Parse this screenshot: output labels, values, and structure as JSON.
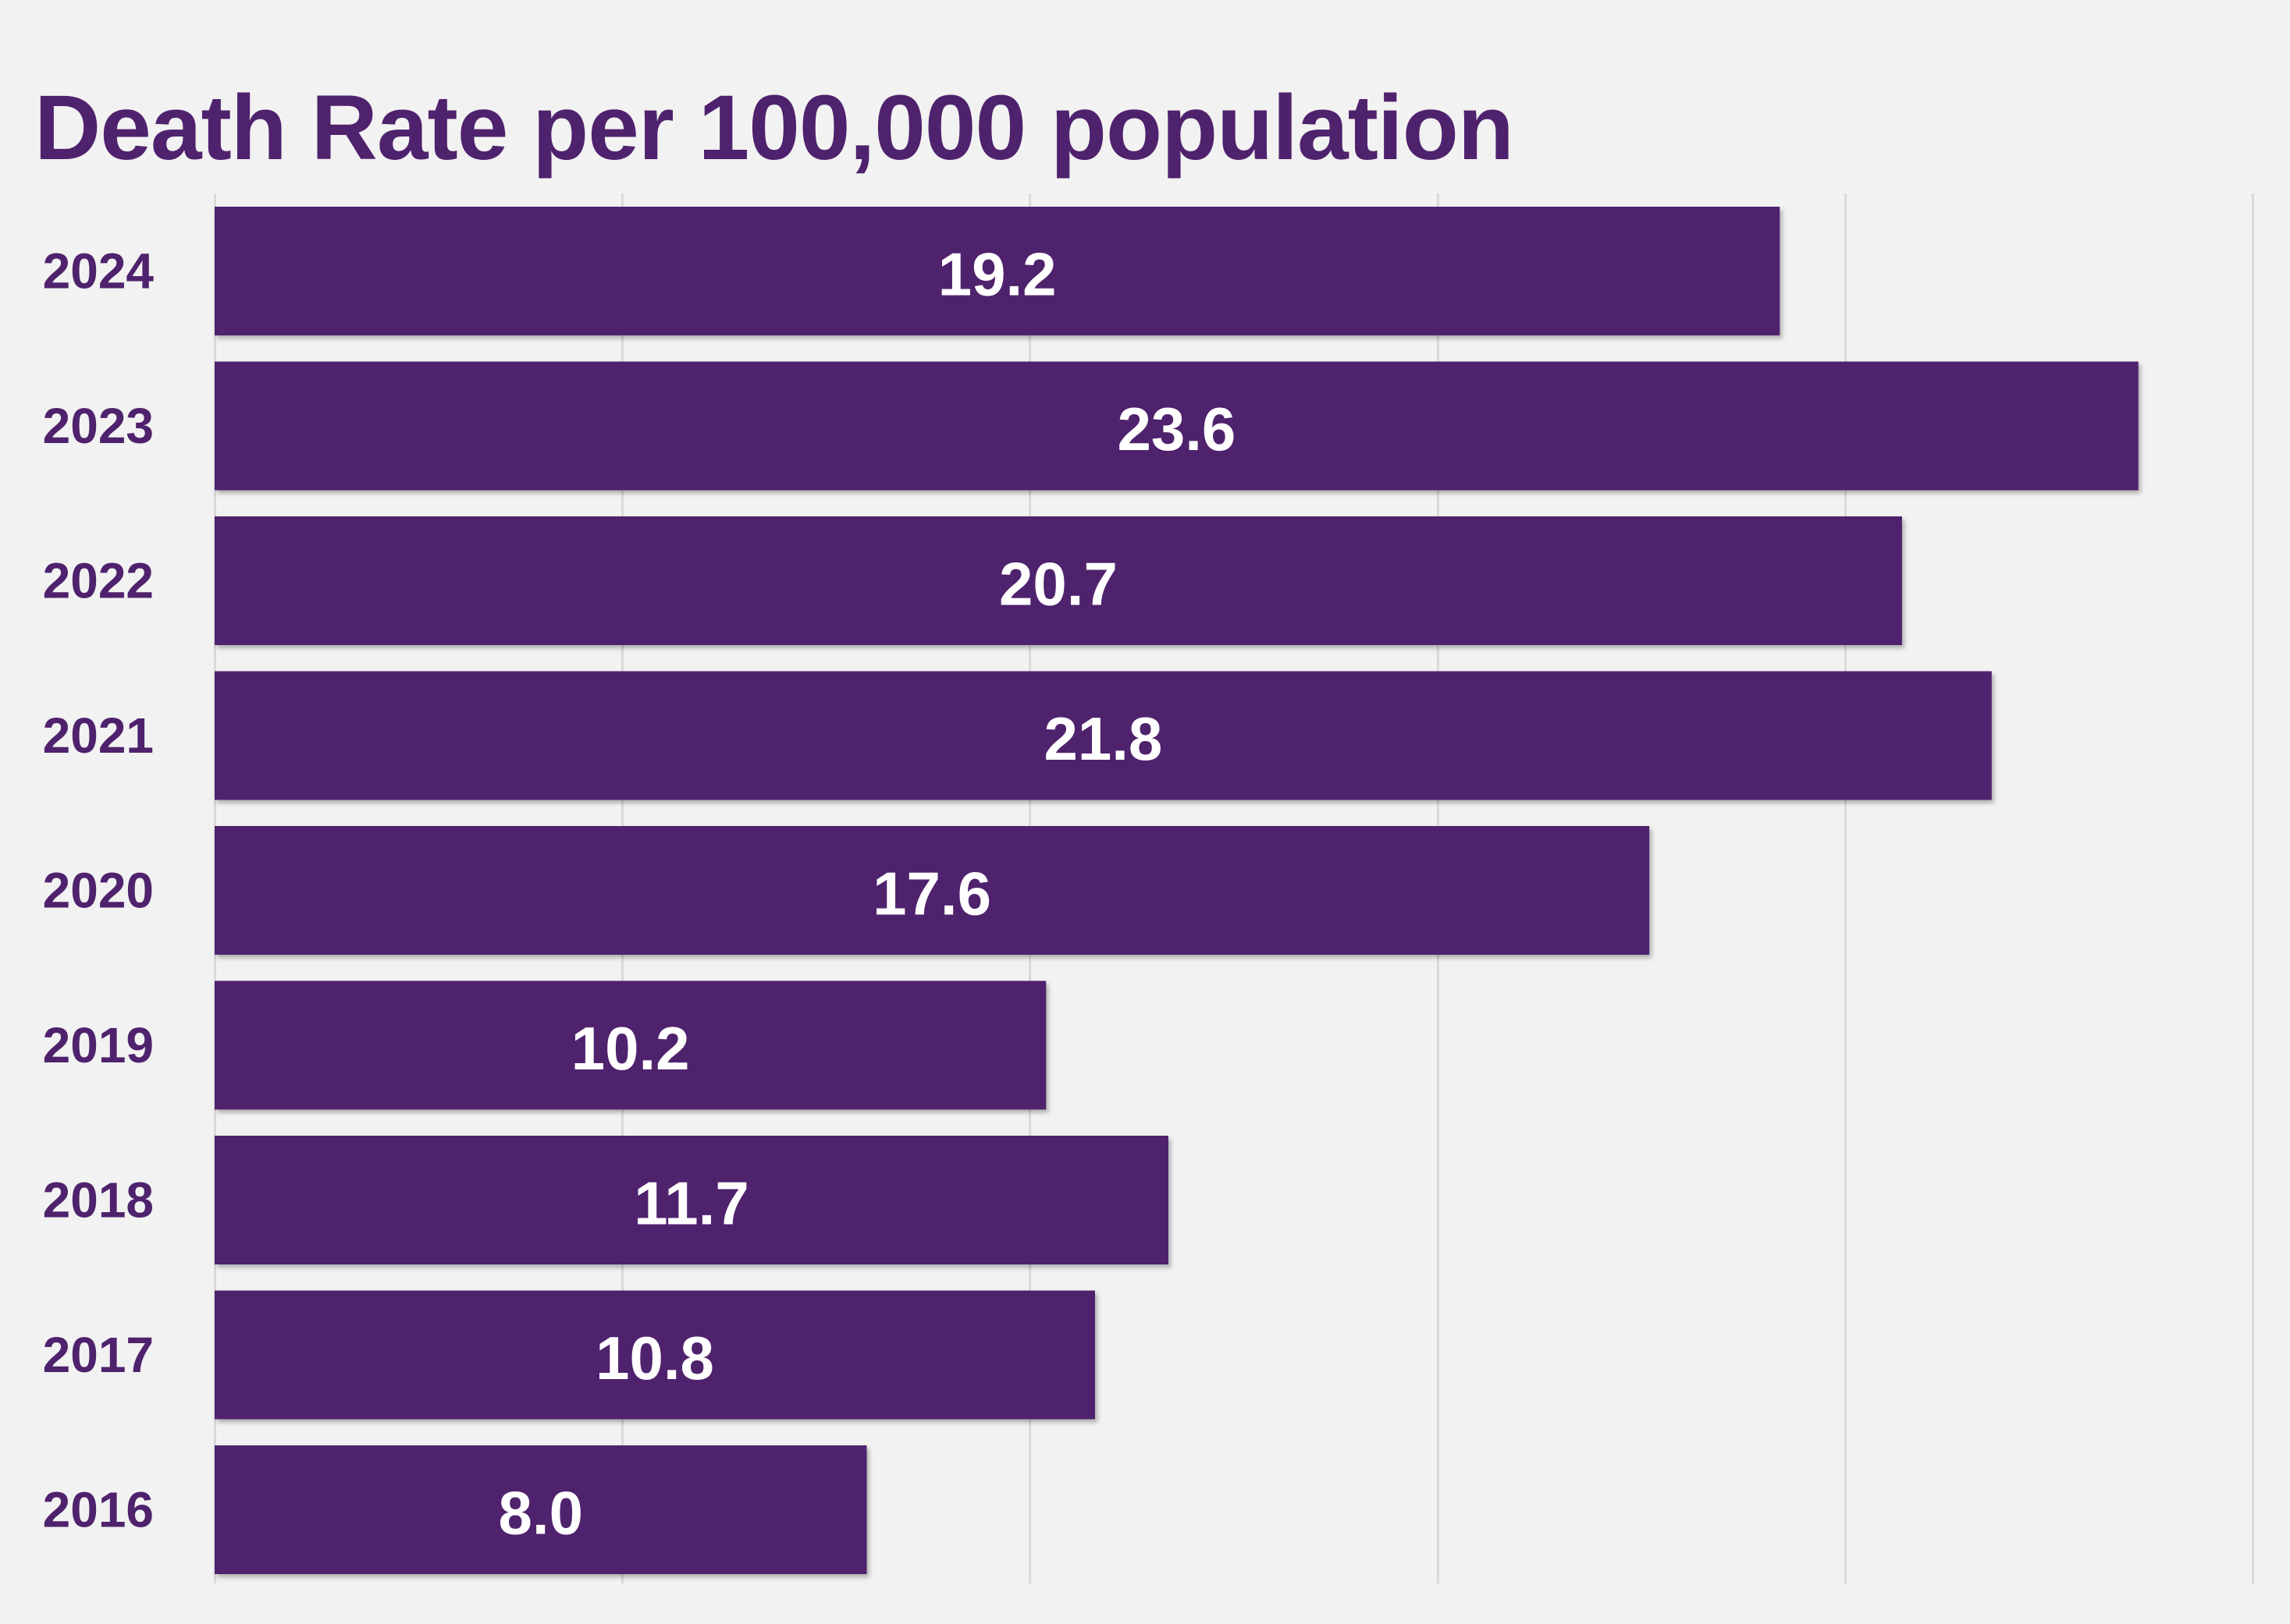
{
  "chart_data": {
    "type": "bar",
    "orientation": "horizontal",
    "title": "Death Rate per 100,000 population",
    "xlabel": "",
    "ylabel": "",
    "categories": [
      "2024",
      "2023",
      "2022",
      "2021",
      "2020",
      "2019",
      "2018",
      "2017",
      "2016"
    ],
    "values": [
      19.2,
      23.6,
      20.7,
      21.8,
      17.6,
      10.2,
      11.7,
      10.8,
      8.0
    ],
    "value_labels": [
      "19.2",
      "23.6",
      "20.7",
      "21.8",
      "17.6",
      "10.2",
      "11.7",
      "10.8",
      "8.0"
    ],
    "xlim": [
      0,
      25
    ],
    "grid": true,
    "grid_step": 5,
    "legend": "none",
    "colors": {
      "bar": "#4f226d",
      "text": "#4f226d",
      "label": "#ffffff",
      "grid": "#d9d9d9",
      "background": "#f2f2f2"
    }
  }
}
